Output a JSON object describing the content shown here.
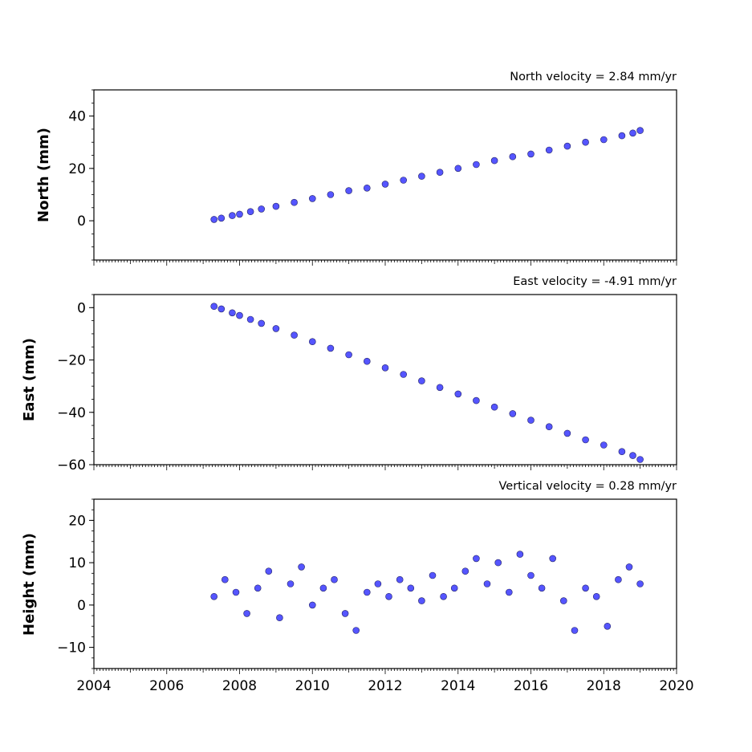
{
  "colors": {
    "marker_fill": "#5555ff",
    "marker_edge": "#222266",
    "axes": "#000000",
    "background": "#ffffff"
  },
  "shared_x": {
    "xlim": [
      2004,
      2020
    ],
    "tick_labels": [
      "2004",
      "2006",
      "2008",
      "2010",
      "2012",
      "2014",
      "2016",
      "2018",
      "2020"
    ]
  },
  "chart_data": [
    {
      "type": "scatter",
      "title": "North velocity = 2.84 mm/yr",
      "ylabel": "North (mm)",
      "ylim": [
        -15,
        50
      ],
      "y_ticks": [
        "0",
        "20",
        "40"
      ],
      "grid": false,
      "legend": "none",
      "series": [
        {
          "x": [
            2007.3,
            2007.5,
            2007.8,
            2008.0,
            2008.3,
            2008.6,
            2009.0,
            2009.5,
            2010.0,
            2010.5,
            2011.0,
            2011.5,
            2012.0,
            2012.5,
            2013.0,
            2013.5,
            2014.0,
            2014.5,
            2015.0,
            2015.5,
            2016.0,
            2016.5,
            2017.0,
            2017.5,
            2018.0,
            2018.5,
            2018.8,
            2019.0
          ],
          "y": [
            0.5,
            1.0,
            2.0,
            2.5,
            3.5,
            4.5,
            5.5,
            7.0,
            8.5,
            10.0,
            11.5,
            12.5,
            14.0,
            15.5,
            17.0,
            18.5,
            20.0,
            21.5,
            23.0,
            24.5,
            25.5,
            27.0,
            28.5,
            30.0,
            31.0,
            32.5,
            33.5,
            34.5
          ]
        }
      ]
    },
    {
      "type": "scatter",
      "title": "East velocity = -4.91 mm/yr",
      "ylabel": "East (mm)",
      "ylim": [
        -60,
        5
      ],
      "y_ticks": [
        "0",
        "−20",
        "−40",
        "−60"
      ],
      "grid": false,
      "legend": "none",
      "series": [
        {
          "x": [
            2007.3,
            2007.5,
            2007.8,
            2008.0,
            2008.3,
            2008.6,
            2009.0,
            2009.5,
            2010.0,
            2010.5,
            2011.0,
            2011.5,
            2012.0,
            2012.5,
            2013.0,
            2013.5,
            2014.0,
            2014.5,
            2015.0,
            2015.5,
            2016.0,
            2016.5,
            2017.0,
            2017.5,
            2018.0,
            2018.5,
            2018.8,
            2019.0
          ],
          "y": [
            0.5,
            -0.5,
            -2.0,
            -3.0,
            -4.5,
            -6.0,
            -8.0,
            -10.5,
            -13.0,
            -15.5,
            -18.0,
            -20.5,
            -23.0,
            -25.5,
            -28.0,
            -30.5,
            -33.0,
            -35.5,
            -38.0,
            -40.5,
            -43.0,
            -45.5,
            -48.0,
            -50.5,
            -52.5,
            -55.0,
            -56.5,
            -58.0
          ]
        }
      ]
    },
    {
      "type": "scatter",
      "title": "Vertical velocity = 0.28 mm/yr",
      "ylabel": "Height (mm)",
      "ylim": [
        -15,
        25
      ],
      "y_ticks": [
        "20",
        "10",
        "0",
        "−10"
      ],
      "grid": false,
      "legend": "none",
      "series": [
        {
          "x": [
            2007.3,
            2007.6,
            2007.9,
            2008.2,
            2008.5,
            2008.8,
            2009.1,
            2009.4,
            2009.7,
            2010.0,
            2010.3,
            2010.6,
            2010.9,
            2011.2,
            2011.5,
            2011.8,
            2012.1,
            2012.4,
            2012.7,
            2013.0,
            2013.3,
            2013.6,
            2013.9,
            2014.2,
            2014.5,
            2014.8,
            2015.1,
            2015.4,
            2015.7,
            2016.0,
            2016.3,
            2016.6,
            2016.9,
            2017.2,
            2017.5,
            2017.8,
            2018.1,
            2018.4,
            2018.7,
            2019.0
          ],
          "y": [
            2,
            6,
            3,
            -2,
            4,
            8,
            -3,
            5,
            9,
            0,
            4,
            6,
            -2,
            -6,
            3,
            5,
            2,
            6,
            4,
            1,
            7,
            2,
            4,
            8,
            11,
            5,
            10,
            3,
            12,
            7,
            4,
            11,
            1,
            -6,
            4,
            2,
            -5,
            6,
            9,
            5
          ]
        }
      ]
    }
  ]
}
